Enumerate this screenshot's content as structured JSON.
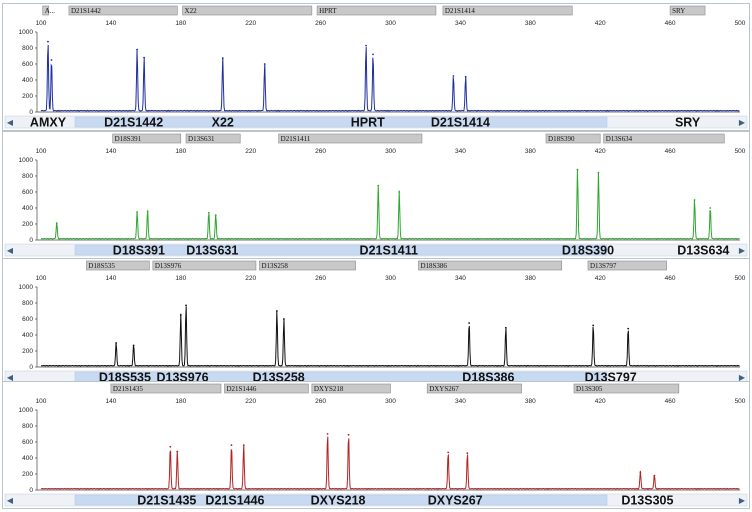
{
  "chart_data": [
    {
      "type": "line",
      "color": "#1f2e9e",
      "x_ticks": [
        100,
        140,
        180,
        220,
        260,
        300,
        340,
        380,
        420,
        460,
        500
      ],
      "y_ticks": [
        0,
        200,
        400,
        600,
        800,
        1000
      ],
      "xlim": [
        100,
        500
      ],
      "ylim": [
        0,
        1000
      ],
      "marker_bins": [
        {
          "label": "A...",
          "start": 101,
          "end": 104
        },
        {
          "label": "D21S1442",
          "start": 116,
          "end": 178
        },
        {
          "label": "X22",
          "start": 181,
          "end": 255
        },
        {
          "label": "HPRT",
          "start": 258,
          "end": 326
        },
        {
          "label": "D21S1414",
          "start": 330,
          "end": 404
        },
        {
          "label": "SRY",
          "start": 460,
          "end": 480
        }
      ],
      "peaks": [
        {
          "x": 104,
          "h": 880
        },
        {
          "x": 106,
          "h": 650
        },
        {
          "x": 155,
          "h": 780
        },
        {
          "x": 159,
          "h": 680
        },
        {
          "x": 204,
          "h": 670
        },
        {
          "x": 228,
          "h": 600
        },
        {
          "x": 286,
          "h": 830
        },
        {
          "x": 290,
          "h": 720
        },
        {
          "x": 336,
          "h": 450
        },
        {
          "x": 343,
          "h": 440
        }
      ],
      "locus_labels": [
        {
          "text": "AMXY",
          "x": 104
        },
        {
          "text": "D21S1442",
          "x": 153
        },
        {
          "text": "X22",
          "x": 204
        },
        {
          "text": "HPRT",
          "x": 287
        },
        {
          "text": "D21S1414",
          "x": 340
        },
        {
          "text": "SRY",
          "x": 470
        }
      ],
      "active": true
    },
    {
      "type": "line",
      "color": "#2ea82e",
      "x_ticks": [
        100,
        140,
        180,
        220,
        260,
        300,
        340,
        380,
        420,
        460,
        500
      ],
      "y_ticks": [
        0,
        200,
        400,
        600,
        800,
        1000
      ],
      "xlim": [
        100,
        500
      ],
      "ylim": [
        0,
        1000
      ],
      "marker_bins": [
        {
          "label": "D18S391",
          "start": 141,
          "end": 180
        },
        {
          "label": "D13S631",
          "start": 183,
          "end": 214
        },
        {
          "label": "D21S1411",
          "start": 236,
          "end": 318
        },
        {
          "label": "D18S390",
          "start": 389,
          "end": 420
        },
        {
          "label": "D13S634",
          "start": 422,
          "end": 491
        }
      ],
      "peaks": [
        {
          "x": 109,
          "h": 210
        },
        {
          "x": 155,
          "h": 350
        },
        {
          "x": 161,
          "h": 360
        },
        {
          "x": 196,
          "h": 340
        },
        {
          "x": 200,
          "h": 310
        },
        {
          "x": 293,
          "h": 680
        },
        {
          "x": 305,
          "h": 600
        },
        {
          "x": 407,
          "h": 880
        },
        {
          "x": 419,
          "h": 840
        },
        {
          "x": 474,
          "h": 500
        },
        {
          "x": 483,
          "h": 400
        }
      ],
      "locus_labels": [
        {
          "text": "D18S391",
          "x": 156
        },
        {
          "text": "D13S631",
          "x": 198
        },
        {
          "text": "D21S1411",
          "x": 299
        },
        {
          "text": "D18S390",
          "x": 413
        },
        {
          "text": "D13S634",
          "x": 479
        }
      ],
      "active": false
    },
    {
      "type": "line",
      "color": "#111111",
      "x_ticks": [
        100,
        140,
        180,
        220,
        260,
        300,
        340,
        380,
        420,
        460,
        500
      ],
      "y_ticks": [
        0,
        200,
        400,
        600,
        800,
        1000
      ],
      "xlim": [
        100,
        500
      ],
      "ylim": [
        0,
        1000
      ],
      "marker_bins": [
        {
          "label": "D18S535",
          "start": 126,
          "end": 162
        },
        {
          "label": "D13S976",
          "start": 164,
          "end": 223
        },
        {
          "label": "D13S258",
          "start": 225,
          "end": 280
        },
        {
          "label": "D18S386",
          "start": 316,
          "end": 398
        },
        {
          "label": "D13S797",
          "start": 413,
          "end": 458
        }
      ],
      "peaks": [
        {
          "x": 143,
          "h": 300
        },
        {
          "x": 153,
          "h": 270
        },
        {
          "x": 180,
          "h": 650
        },
        {
          "x": 183,
          "h": 770
        },
        {
          "x": 235,
          "h": 700
        },
        {
          "x": 239,
          "h": 600
        },
        {
          "x": 345,
          "h": 550
        },
        {
          "x": 366,
          "h": 490
        },
        {
          "x": 416,
          "h": 520
        },
        {
          "x": 436,
          "h": 480
        }
      ],
      "locus_labels": [
        {
          "text": "D18S535",
          "x": 148
        },
        {
          "text": "D13S976",
          "x": 181
        },
        {
          "text": "D13S258",
          "x": 236
        },
        {
          "text": "D18S386",
          "x": 356
        },
        {
          "text": "D13S797",
          "x": 426
        }
      ],
      "active": false
    },
    {
      "type": "line",
      "color": "#b22424",
      "x_ticks": [
        100,
        140,
        180,
        220,
        260,
        300,
        340,
        380,
        420,
        460,
        500
      ],
      "y_ticks": [
        0,
        200,
        400,
        600,
        800,
        1000
      ],
      "xlim": [
        100,
        500
      ],
      "ylim": [
        0,
        1000
      ],
      "marker_bins": [
        {
          "label": "D21S1435",
          "start": 140,
          "end": 203
        },
        {
          "label": "D21S1446",
          "start": 205,
          "end": 253
        },
        {
          "label": "DXYS218",
          "start": 255,
          "end": 300
        },
        {
          "label": "DXYS267",
          "start": 321,
          "end": 375
        },
        {
          "label": "D13S305",
          "start": 405,
          "end": 465
        }
      ],
      "peaks": [
        {
          "x": 174,
          "h": 540
        },
        {
          "x": 178,
          "h": 480
        },
        {
          "x": 209,
          "h": 560
        },
        {
          "x": 216,
          "h": 560
        },
        {
          "x": 264,
          "h": 700
        },
        {
          "x": 276,
          "h": 690
        },
        {
          "x": 333,
          "h": 470
        },
        {
          "x": 344,
          "h": 460
        },
        {
          "x": 443,
          "h": 220
        },
        {
          "x": 451,
          "h": 180
        }
      ],
      "locus_labels": [
        {
          "text": "D21S1435",
          "x": 172
        },
        {
          "text": "D21S1446",
          "x": 211
        },
        {
          "text": "DXYS218",
          "x": 270
        },
        {
          "text": "DXYS267",
          "x": 337
        },
        {
          "text": "D13S305",
          "x": 447
        }
      ],
      "active": false
    }
  ]
}
